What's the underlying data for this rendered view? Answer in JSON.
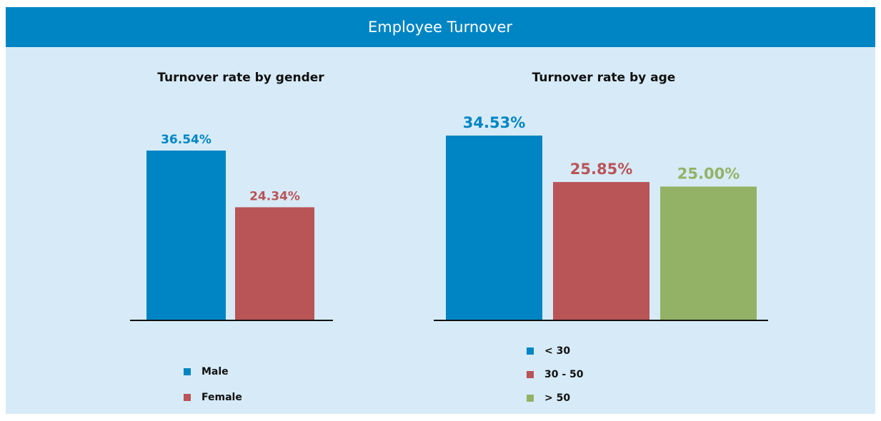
{
  "title": "Employee Turnover",
  "chart_data": [
    {
      "type": "bar",
      "title": "Turnover rate by gender",
      "categories": [
        "Male",
        "Female"
      ],
      "values": [
        36.54,
        24.34
      ],
      "value_labels": [
        "36.54%",
        "24.34%"
      ],
      "colors": [
        "#0085c4",
        "#b95457"
      ]
    },
    {
      "type": "bar",
      "title": "Turnover rate by age",
      "categories": [
        "< 30",
        "30 - 50",
        "> 50"
      ],
      "values": [
        34.53,
        25.85,
        25.0
      ],
      "value_labels": [
        "34.53%",
        "25.85%",
        "25.00%"
      ],
      "colors": [
        "#0085c4",
        "#b95457",
        "#93b266"
      ]
    }
  ]
}
